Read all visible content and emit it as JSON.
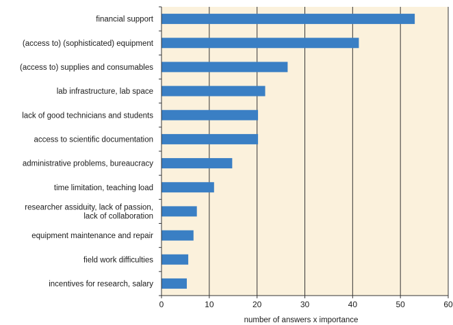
{
  "chart_data": {
    "type": "bar",
    "orientation": "horizontal",
    "categories": [
      "financial support",
      "(access to) (sophisticated) equipment",
      "(access to) supplies and consumables",
      "lab infrastructure, lab space",
      "lack of good technicians and students",
      "access to scientific documentation",
      "administrative problems, bureaucracy",
      "time limitation, teaching load",
      "researcher assiduity, lack of passion,\nlack of collaboration",
      "equipment maintenance and repair",
      "field work difficulties",
      "incentives for research, salary"
    ],
    "values": [
      53,
      41.3,
      26.4,
      21.7,
      20.2,
      20.2,
      14.8,
      11,
      7.4,
      6.7,
      5.6,
      5.3
    ],
    "xlabel": "number of answers x importance",
    "ylabel": "",
    "xlim": [
      0,
      60
    ],
    "xticks": [
      0,
      10,
      20,
      30,
      40,
      50,
      60
    ],
    "grid": "vertical",
    "colors": {
      "bar": "#3a7fc4",
      "plot_background": "#fbf1dc",
      "grid": "#333333",
      "axis": "#333333"
    }
  }
}
